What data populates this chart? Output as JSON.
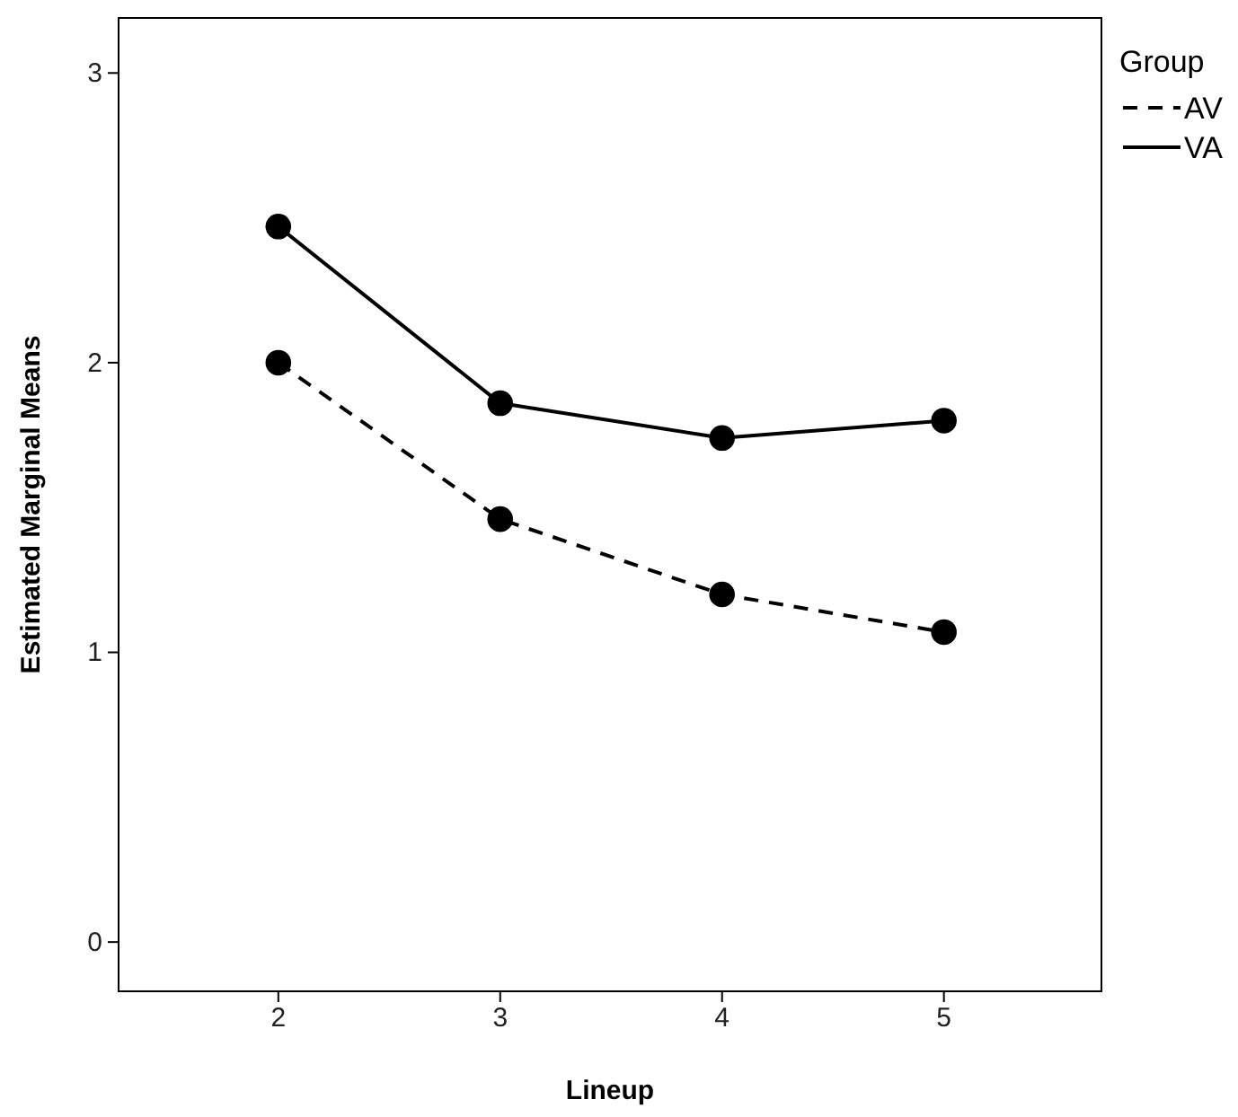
{
  "chart_data": {
    "type": "line",
    "xlabel": "Lineup",
    "ylabel": "Estimated Marginal Means",
    "legend_title": "Group",
    "x": [
      2,
      3,
      4,
      5
    ],
    "xlim": [
      1.28,
      5.71
    ],
    "xticks": [
      2,
      3,
      4,
      5
    ],
    "ylim": [
      -0.17,
      3.19
    ],
    "yticks": [
      0,
      1,
      2,
      3
    ],
    "grid": false,
    "legend": "top right",
    "marker": "circle",
    "series": [
      {
        "name": "AV",
        "color": "#000000",
        "line_style": "dashed",
        "values": [
          2.0,
          1.46,
          1.2,
          1.07
        ]
      },
      {
        "name": "VA",
        "color": "#000000",
        "line_style": "solid",
        "values": [
          2.47,
          1.86,
          1.74,
          1.8
        ]
      }
    ]
  }
}
